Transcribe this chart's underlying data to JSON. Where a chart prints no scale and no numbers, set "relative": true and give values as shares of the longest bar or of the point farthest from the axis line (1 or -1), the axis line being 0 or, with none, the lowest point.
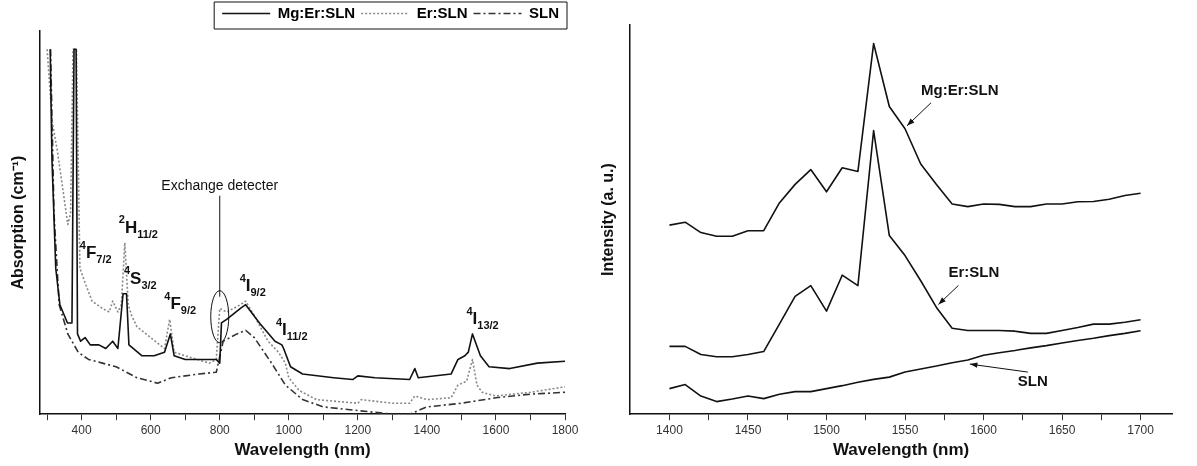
{
  "chart_data": [
    {
      "type": "line",
      "xlabel": "Wavelength (nm)",
      "ylabel": "Absorption (cm⁻¹)",
      "relative": true,
      "legend": "top right",
      "marker": "none",
      "xlim": [
        280,
        1800
      ],
      "xticks": [
        {
          "value": 300,
          "label": null
        },
        400,
        {
          "value": 500,
          "label": null
        },
        600,
        {
          "value": 700,
          "label": null
        },
        800,
        {
          "value": 900,
          "label": null
        },
        1000,
        {
          "value": 1100,
          "label": null
        },
        1200,
        {
          "value": 1300,
          "label": null
        },
        1400,
        {
          "value": 1500,
          "label": null
        },
        1600,
        {
          "value": 1700,
          "label": null
        },
        1800
      ],
      "series": [
        {
          "name": "Mg:Er:SLN",
          "color": "#111111",
          "line_style": "solid",
          "x": [
            309,
            314,
            325,
            337,
            359,
            372,
            378,
            384,
            388,
            397,
            410,
            425,
            450,
            470,
            490,
            505,
            520,
            530,
            537,
            550,
            575,
            610,
            640,
            657,
            668,
            700,
            790,
            800,
            805,
            820,
            860,
            875,
            915,
            960,
            980,
            985,
            1005,
            1040,
            1130,
            1185,
            1200,
            1250,
            1350,
            1365,
            1375,
            1470,
            1490,
            1510,
            1520,
            1532,
            1555,
            1580,
            1640,
            1720,
            1800
          ],
          "values": [
            1.0,
            0.7,
            0.4,
            0.3,
            0.25,
            0.25,
            1.0,
            1.0,
            0.22,
            0.2,
            0.21,
            0.19,
            0.19,
            0.18,
            0.2,
            0.18,
            0.33,
            0.33,
            0.19,
            0.18,
            0.16,
            0.16,
            0.17,
            0.22,
            0.16,
            0.15,
            0.15,
            0.14,
            0.25,
            0.26,
            0.29,
            0.3,
            0.25,
            0.2,
            0.19,
            0.18,
            0.13,
            0.11,
            0.1,
            0.095,
            0.105,
            0.1,
            0.095,
            0.125,
            0.1,
            0.11,
            0.15,
            0.16,
            0.17,
            0.22,
            0.16,
            0.13,
            0.125,
            0.14,
            0.145
          ]
        },
        {
          "name": "Er:SLN",
          "color": "#888888",
          "line_style": "dotted",
          "x": [
            300,
            315,
            330,
            345,
            360,
            368,
            375,
            385,
            395,
            410,
            430,
            460,
            480,
            490,
            505,
            515,
            525,
            535,
            545,
            560,
            600,
            640,
            655,
            668,
            700,
            770,
            790,
            800,
            820,
            860,
            875,
            900,
            940,
            970,
            990,
            1000,
            1030,
            1080,
            1200,
            1210,
            1300,
            1350,
            1365,
            1400,
            1470,
            1490,
            1515,
            1532,
            1545,
            1560,
            1600,
            1700,
            1800
          ],
          "values": [
            1.0,
            0.8,
            0.72,
            0.62,
            0.52,
            0.55,
            1.0,
            1.0,
            0.4,
            0.36,
            0.31,
            0.29,
            0.28,
            0.31,
            0.28,
            0.3,
            0.47,
            0.3,
            0.27,
            0.24,
            0.21,
            0.18,
            0.26,
            0.17,
            0.16,
            0.14,
            0.15,
            0.29,
            0.28,
            0.3,
            0.31,
            0.27,
            0.2,
            0.17,
            0.14,
            0.1,
            0.065,
            0.04,
            0.03,
            0.04,
            0.03,
            0.03,
            0.05,
            0.04,
            0.045,
            0.08,
            0.09,
            0.15,
            0.08,
            0.06,
            0.05,
            0.06,
            0.075
          ]
        },
        {
          "name": "SLN",
          "color": "#333333",
          "line_style": "dashed",
          "x": [
            310,
            320,
            335,
            360,
            390,
            420,
            460,
            500,
            560,
            620,
            660,
            740,
            790,
            810,
            850,
            875,
            900,
            950,
            990,
            1040,
            1100,
            1200,
            1300,
            1350,
            1400,
            1500,
            1600,
            1700,
            1800
          ],
          "values": [
            1.0,
            0.55,
            0.3,
            0.22,
            0.17,
            0.15,
            0.14,
            0.13,
            0.1,
            0.085,
            0.1,
            0.11,
            0.115,
            0.2,
            0.22,
            0.23,
            0.21,
            0.14,
            0.08,
            0.04,
            0.02,
            0.01,
            0.0,
            0.0,
            0.02,
            0.03,
            0.045,
            0.055,
            0.06
          ]
        }
      ],
      "annotations": [
        {
          "text": "Exchange detecter",
          "x": 800,
          "y": 0.3
        },
        {
          "text": "$^{4}$F$_{7/2}$",
          "x": 412,
          "y": 0.4
        },
        {
          "text": "$^{2}$H$_{11/2}$",
          "x": 525,
          "y": 0.47
        },
        {
          "text": "$^{4}$S$_{3/2}$",
          "x": 540,
          "y": 0.33
        },
        {
          "text": "$^{4}$F$_{9/2}$",
          "x": 657,
          "y": 0.26
        },
        {
          "text": "$^{4}$I$_{9/2}$",
          "x": 875,
          "y": 0.31
        },
        {
          "text": "$^{4}$I$_{11/2}$",
          "x": 980,
          "y": 0.19
        },
        {
          "text": "$^{4}$I$_{13/2}$",
          "x": 1532,
          "y": 0.22
        }
      ]
    },
    {
      "type": "line",
      "xlabel": "Wavelength (nm)",
      "ylabel": "Intensity (a. u.)",
      "relative": true,
      "legend": false,
      "marker": "none",
      "xlim": [
        1375,
        1720
      ],
      "xticks": [
        1400,
        {
          "value": 1425,
          "label": null
        },
        1450,
        {
          "value": 1475,
          "label": null
        },
        1500,
        {
          "value": 1525,
          "label": null
        },
        1550,
        {
          "value": 1575,
          "label": null
        },
        1600,
        {
          "value": 1625,
          "label": null
        },
        1650,
        {
          "value": 1675,
          "label": null
        },
        1700
      ],
      "x": [
        1400,
        1410,
        1420,
        1430,
        1440,
        1450,
        1460,
        1470,
        1480,
        1490,
        1500,
        1510,
        1520,
        1530,
        1540,
        1550,
        1560,
        1570,
        1580,
        1590,
        1600,
        1610,
        1620,
        1630,
        1640,
        1650,
        1660,
        1670,
        1680,
        1690,
        1700
      ],
      "series": [
        {
          "name": "Mg:Er:SLN",
          "color": "#111111",
          "line_style": "solid",
          "values": [
            0.51,
            0.518,
            0.49,
            0.48,
            0.48,
            0.495,
            0.495,
            0.57,
            0.62,
            0.66,
            0.6,
            0.665,
            0.655,
            1.0,
            0.83,
            0.77,
            0.675,
            0.62,
            0.567,
            0.56,
            0.567,
            0.566,
            0.56,
            0.56,
            0.567,
            0.567,
            0.573,
            0.574,
            0.58,
            0.59,
            0.596
          ]
        },
        {
          "name": "Er:SLN",
          "color": "#111111",
          "line_style": "solid",
          "values": [
            0.183,
            0.183,
            0.161,
            0.155,
            0.155,
            0.161,
            0.169,
            0.243,
            0.318,
            0.347,
            0.278,
            0.375,
            0.347,
            0.765,
            0.482,
            0.428,
            0.36,
            0.288,
            0.232,
            0.226,
            0.226,
            0.226,
            0.224,
            0.218,
            0.218,
            0.226,
            0.234,
            0.243,
            0.243,
            0.248,
            0.255
          ]
        },
        {
          "name": "SLN",
          "color": "#111111",
          "line_style": "solid",
          "values": [
            0.069,
            0.08,
            0.049,
            0.034,
            0.041,
            0.049,
            0.042,
            0.054,
            0.061,
            0.061,
            0.069,
            0.077,
            0.086,
            0.094,
            0.1,
            0.114,
            0.122,
            0.13,
            0.139,
            0.146,
            0.159,
            0.166,
            0.172,
            0.179,
            0.185,
            0.192,
            0.199,
            0.205,
            0.212,
            0.218,
            0.225
          ]
        }
      ]
    }
  ]
}
